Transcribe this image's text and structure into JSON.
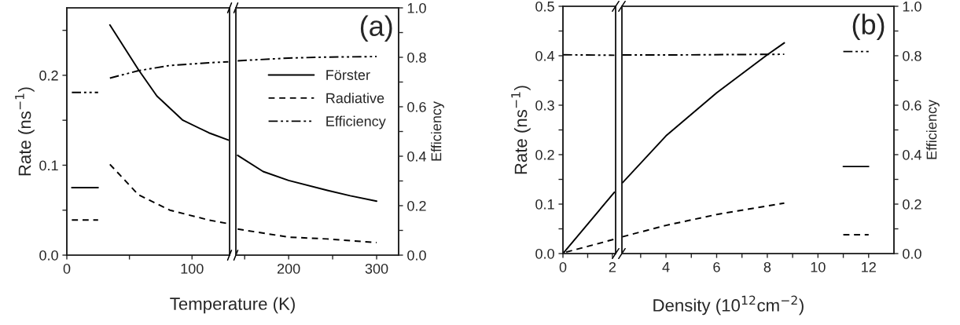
{
  "chart_data": [
    {
      "type": "line",
      "ylabel": "Rate (ns$^{−1}$)",
      "xlim": [
        0,
        130
      ],
      "xticks": [
        0,
        {
          "value": 50,
          "label": null
        },
        100
      ],
      "ylim": [
        0,
        0.275
      ],
      "yticks": [
        {
          "value": 0,
          "label": "0.0"
        },
        {
          "value": 0.05,
          "label": null
        },
        {
          "value": 0.1,
          "label": "0.1"
        },
        {
          "value": 0.15,
          "label": null
        },
        {
          "value": 0.2,
          "label": "0.2"
        },
        {
          "value": 0.25,
          "label": null
        }
      ],
      "y2lim": [
        0,
        1.0
      ],
      "series": [
        {
          "color": "#000000",
          "line_style": "solid",
          "x": [
            34.4,
            57.3,
            71.9,
            92.7,
            113.5,
            129
          ],
          "values": [
            0.256,
            0.206,
            0.177,
            0.15,
            0.136,
            0.128
          ]
        },
        {
          "color": "#000000",
          "line_style": "dashed",
          "x": [
            34.4,
            57.3,
            82.3,
            113.5,
            129
          ],
          "values": [
            0.101,
            0.067,
            0.05,
            0.039,
            0.035
          ]
        },
        {
          "color": "#000000",
          "line_style": "dashdot",
          "axis": "y2",
          "x": [
            34.4,
            57.3,
            82.3,
            113.5,
            129
          ],
          "values": [
            0.716,
            0.746,
            0.767,
            0.778,
            0.782
          ]
        },
        {
          "color": "#000000",
          "line_style": "solid",
          "x": [
            4,
            25
          ],
          "values": [
            0.075,
            0.075
          ]
        },
        {
          "color": "#000000",
          "line_style": "dashed",
          "x": [
            4,
            25
          ],
          "values": [
            0.039,
            0.039
          ]
        },
        {
          "color": "#000000",
          "line_style": "dashdot",
          "axis": "y2",
          "x": [
            4,
            25
          ],
          "values": [
            0.658,
            0.658
          ]
        }
      ]
    },
    {
      "type": "line",
      "xlabel": "Temperature (K)",
      "y2label": "Efficiency",
      "annotations": [
        "(a)"
      ],
      "legend": "right",
      "xlim": [
        140,
        325
      ],
      "xticks": [
        {
          "value": 150,
          "label": null
        },
        200,
        {
          "value": 250,
          "label": null
        },
        300
      ],
      "ylim": [
        0,
        0.275
      ],
      "y2lim": [
        0,
        1.0
      ],
      "y2ticks": [
        {
          "value": 0,
          "label": "0.0"
        },
        {
          "value": 0.1,
          "label": null
        },
        {
          "value": 0.2,
          "label": "0.2"
        },
        {
          "value": 0.3,
          "label": null
        },
        {
          "value": 0.4,
          "label": "0.4"
        },
        {
          "value": 0.5,
          "label": null
        },
        {
          "value": 0.6,
          "label": "0.6"
        },
        {
          "value": 0.7,
          "label": null
        },
        {
          "value": 0.8,
          "label": "0.8"
        },
        {
          "value": 0.9,
          "label": null
        },
        {
          "value": 1.0,
          "label": "1.0"
        }
      ],
      "series": [
        {
          "name": "Förster",
          "color": "#000000",
          "line_style": "solid",
          "x": [
            142,
            171,
            200,
            244,
            270,
            300
          ],
          "values": [
            0.111,
            0.093,
            0.083,
            0.072,
            0.066,
            0.06
          ]
        },
        {
          "name": "Radiative",
          "color": "#000000",
          "line_style": "dashed",
          "x": [
            142,
            200,
            244,
            300
          ],
          "values": [
            0.029,
            0.02,
            0.018,
            0.014
          ]
        },
        {
          "name": "Efficiency",
          "color": "#000000",
          "line_style": "dashdot",
          "axis": "y2",
          "x": [
            142,
            200,
            244,
            300
          ],
          "values": [
            0.786,
            0.797,
            0.801,
            0.803
          ]
        }
      ]
    },
    {
      "type": "line",
      "ylabel": "Rate (ns$^{−1}$)",
      "xlim": [
        0,
        2.13
      ],
      "xticks": [
        0,
        {
          "value": 1,
          "label": null
        },
        2
      ],
      "ylim": [
        0,
        0.5
      ],
      "yticks": [
        {
          "value": 0,
          "label": "0.0"
        },
        {
          "value": 0.05,
          "label": null
        },
        {
          "value": 0.1,
          "label": "0.1"
        },
        {
          "value": 0.15,
          "label": null
        },
        {
          "value": 0.2,
          "label": "0.2"
        },
        {
          "value": 0.25,
          "label": null
        },
        {
          "value": 0.3,
          "label": "0.3"
        },
        {
          "value": 0.35,
          "label": null
        },
        {
          "value": 0.4,
          "label": "0.4"
        },
        {
          "value": 0.45,
          "label": null
        },
        {
          "value": 0.5,
          "label": "0.5"
        }
      ],
      "y2lim": [
        0,
        1.0
      ],
      "series": [
        {
          "color": "#000000",
          "line_style": "solid",
          "x": [
            0,
            2.08
          ],
          "values": [
            0,
            0.124
          ]
        },
        {
          "color": "#000000",
          "line_style": "dashed",
          "x": [
            0.13,
            2.08
          ],
          "values": [
            0.003,
            0.029
          ]
        },
        {
          "color": "#000000",
          "line_style": "dashdot",
          "axis": "y2",
          "x": [
            0,
            2.08
          ],
          "values": [
            0.804,
            0.802
          ]
        }
      ]
    },
    {
      "type": "line",
      "xlabel": "Density (10$^{12}$cm$^{−2}$)",
      "y2label": "Efficiency",
      "annotations": [
        "(b)"
      ],
      "xlim": [
        2.26,
        13
      ],
      "xticks": [
        {
          "value": 3,
          "label": null
        },
        4,
        {
          "value": 5,
          "label": null
        },
        6,
        {
          "value": 7,
          "label": null
        },
        8,
        {
          "value": 9,
          "label": null
        },
        10,
        {
          "value": 11,
          "label": null
        },
        12
      ],
      "ylim": [
        0,
        0.5
      ],
      "y2lim": [
        0,
        1.0
      ],
      "y2ticks": [
        {
          "value": 0,
          "label": "0.0"
        },
        {
          "value": 0.1,
          "label": null
        },
        {
          "value": 0.2,
          "label": "0.2"
        },
        {
          "value": 0.3,
          "label": null
        },
        {
          "value": 0.4,
          "label": "0.4"
        },
        {
          "value": 0.5,
          "label": null
        },
        {
          "value": 0.6,
          "label": "0.6"
        },
        {
          "value": 0.7,
          "label": null
        },
        {
          "value": 0.8,
          "label": "0.8"
        },
        {
          "value": 0.9,
          "label": null
        },
        {
          "value": 1.0,
          "label": "1.0"
        }
      ],
      "series": [
        {
          "color": "#000000",
          "line_style": "solid",
          "x": [
            2.28,
            4,
            6,
            8,
            8.67
          ],
          "values": [
            0.143,
            0.238,
            0.325,
            0.402,
            0.426
          ]
        },
        {
          "color": "#000000",
          "line_style": "dashed",
          "x": [
            2.28,
            4,
            6,
            8.67
          ],
          "values": [
            0.034,
            0.057,
            0.079,
            0.102
          ]
        },
        {
          "color": "#000000",
          "line_style": "dashdot",
          "axis": "y2",
          "x": [
            2.28,
            4,
            8.67
          ],
          "values": [
            0.803,
            0.803,
            0.806
          ]
        },
        {
          "color": "#000000",
          "line_style": "solid",
          "x": [
            11,
            12
          ],
          "values": [
            0.176,
            0.176
          ]
        },
        {
          "color": "#000000",
          "line_style": "dashed",
          "x": [
            11,
            12
          ],
          "values": [
            0.038,
            0.038
          ]
        },
        {
          "color": "#000000",
          "line_style": "dashdot",
          "axis": "y2",
          "x": [
            11,
            12
          ],
          "values": [
            0.817,
            0.817
          ]
        }
      ]
    }
  ]
}
